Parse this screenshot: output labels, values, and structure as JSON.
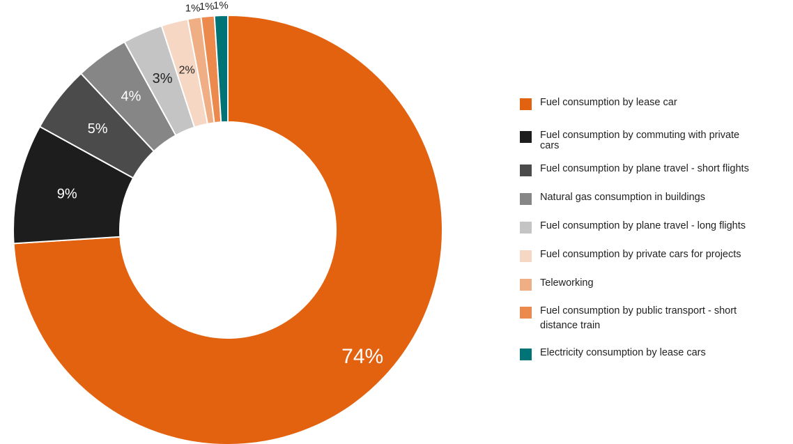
{
  "chart_data": {
    "type": "pie",
    "donut": true,
    "legend_position": "right",
    "slices": [
      {
        "label": "Fuel consumption by lease car",
        "value": 74,
        "value_label": "74%",
        "color": "#e3620f",
        "label_color": "#ffffff"
      },
      {
        "label": "Fuel consumption by commuting with private cars",
        "value": 9,
        "value_label": "9%",
        "color": "#1d1d1d",
        "label_color": "#ffffff"
      },
      {
        "label": "Fuel consumption by plane travel - short flights",
        "value": 5,
        "value_label": "5%",
        "color": "#4b4b4b",
        "label_color": "#ffffff"
      },
      {
        "label": "Natural gas consumption in buildings",
        "value": 4,
        "value_label": "4%",
        "color": "#868686",
        "label_color": "#ffffff"
      },
      {
        "label": "Fuel consumption by plane travel - long flights",
        "value": 3,
        "value_label": "3%",
        "color": "#c4c4c4",
        "label_color": "#222222"
      },
      {
        "label": "Fuel consumption by private cars for projects",
        "value": 2,
        "value_label": "2%",
        "color": "#f6d7c3",
        "label_color": "#222222"
      },
      {
        "label": "Teleworking",
        "value": 1,
        "value_label": "1%",
        "color": "#efae84",
        "label_color": "#222222"
      },
      {
        "label": "Fuel consumption by public transport - short distance train",
        "value": 1,
        "value_label": "1%",
        "color": "#eb8a4c",
        "label_color": "#222222"
      },
      {
        "label": "Electricity consumption by lease cars",
        "value": 1,
        "value_label": "1%",
        "color": "#007377",
        "label_color": "#222222"
      }
    ]
  }
}
